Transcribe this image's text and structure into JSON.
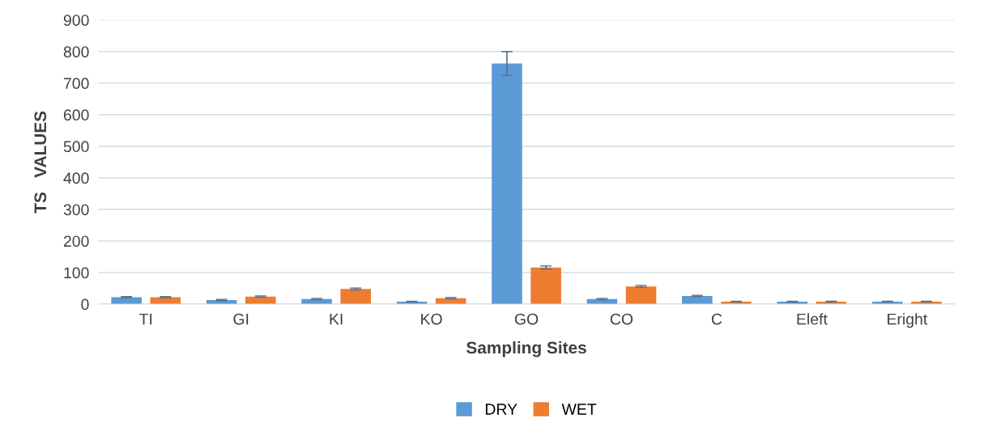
{
  "chart_data": {
    "type": "bar",
    "xlabel": "Sampling Sites",
    "ylabel": "TS   VALUES",
    "categories": [
      "TI",
      "GI",
      "KI",
      "KO",
      "GO",
      "CO",
      "C",
      "Eleft",
      "Eright"
    ],
    "series": [
      {
        "name": "DRY",
        "color": "#5b9bd5",
        "values": [
          22,
          13,
          16,
          8,
          762,
          16,
          26,
          8,
          8
        ],
        "errors": [
          2,
          2,
          2,
          1,
          38,
          2,
          2,
          1,
          1
        ]
      },
      {
        "name": "WET",
        "color": "#ed7d31",
        "values": [
          22,
          24,
          48,
          19,
          116,
          56,
          8,
          8,
          8
        ],
        "errors": [
          2,
          2,
          3,
          2,
          5,
          3,
          1,
          1,
          1
        ]
      }
    ],
    "ylim": [
      0,
      900
    ],
    "yticks": [
      0,
      100,
      200,
      300,
      400,
      500,
      600,
      700,
      800,
      900
    ],
    "grid": "y",
    "legend": "bottom"
  }
}
